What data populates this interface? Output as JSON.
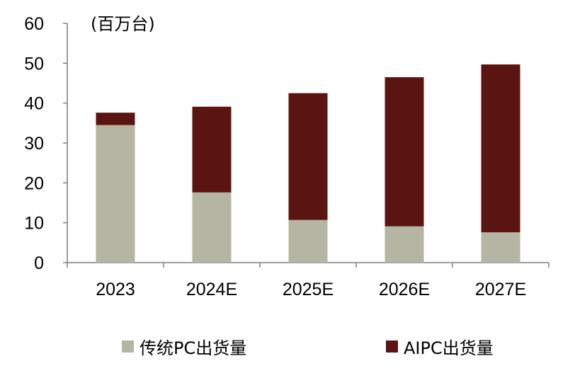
{
  "chart_data": {
    "type": "bar",
    "stacked": true,
    "unit_label": "(百万台)",
    "categories": [
      "2023",
      "2024E",
      "2025E",
      "2026E",
      "2027E"
    ],
    "series": [
      {
        "name": "传统PC出货量",
        "color": "#b5b5a3",
        "values": [
          34.5,
          17.6,
          10.7,
          9.1,
          7.6
        ]
      },
      {
        "name": "AIPC出货量",
        "color": "#5a1411",
        "values": [
          3.1,
          21.5,
          31.8,
          37.4,
          42.1
        ]
      }
    ],
    "ylim": [
      0,
      60
    ],
    "yticks": [
      0,
      10,
      20,
      30,
      40,
      50,
      60
    ],
    "grid": false,
    "legend_position": "bottom"
  }
}
